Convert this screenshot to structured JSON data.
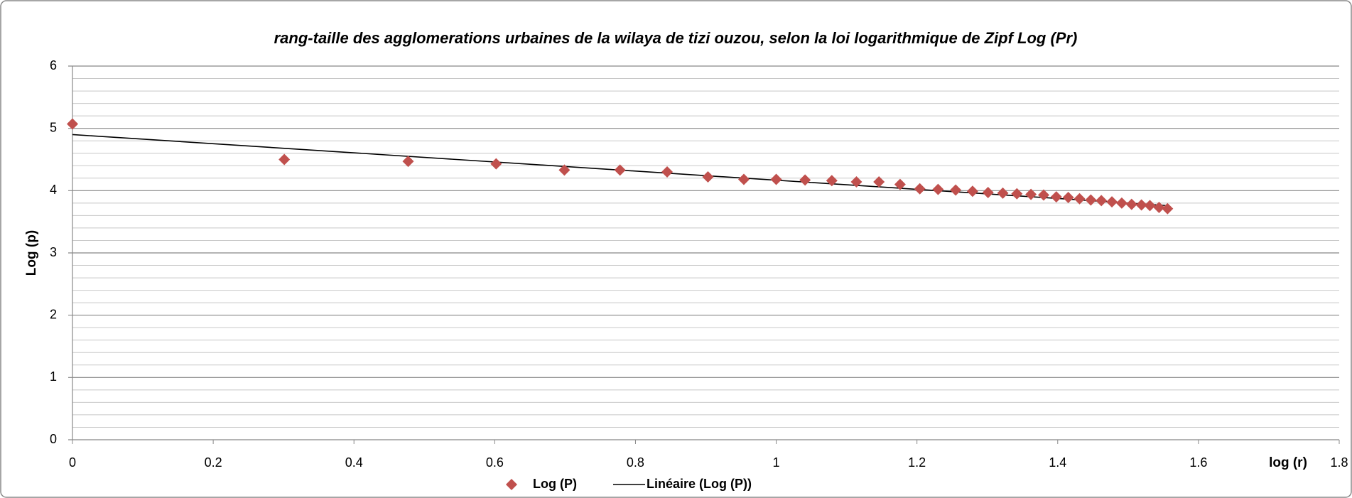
{
  "chart_data": {
    "type": "scatter",
    "title": "rang-taille des agglomerations urbaines de la wilaya de tizi ouzou, selon la loi logarithmique  de Zipf Log (Pr)",
    "x_label": "log (r)",
    "y_label": "Log (p)",
    "xlim": [
      0,
      1.8
    ],
    "xticks": [
      0,
      0.2,
      0.4,
      0.6,
      0.8,
      1,
      1.2,
      1.4,
      1.6,
      1.8
    ],
    "ylim": [
      0,
      6
    ],
    "yticks": [
      0,
      1,
      2,
      3,
      4,
      5,
      6
    ],
    "grid": true,
    "legend": "bottom",
    "series": [
      {
        "name": "Log (P)",
        "color": "#c0504d",
        "x": [
          0,
          0.301,
          0.477,
          0.602,
          0.699,
          0.778,
          0.845,
          0.903,
          0.954,
          1,
          1.041,
          1.079,
          1.114,
          1.146,
          1.176,
          1.204,
          1.23,
          1.255,
          1.279,
          1.301,
          1.322,
          1.342,
          1.362,
          1.38,
          1.398,
          1.415,
          1.431,
          1.447,
          1.462,
          1.477,
          1.491,
          1.505,
          1.519,
          1.531,
          1.544,
          1.556
        ],
        "values": [
          5.07,
          4.5,
          4.47,
          4.43,
          4.33,
          4.33,
          4.3,
          4.22,
          4.18,
          4.18,
          4.17,
          4.16,
          4.14,
          4.14,
          4.1,
          4.03,
          4.02,
          4.01,
          3.99,
          3.97,
          3.96,
          3.95,
          3.94,
          3.93,
          3.9,
          3.89,
          3.87,
          3.85,
          3.84,
          3.82,
          3.8,
          3.78,
          3.77,
          3.76,
          3.73,
          3.71
        ]
      }
    ],
    "trendline": {
      "name": "Linéaire (Log (P))",
      "color": "#000000",
      "x": [
        0,
        1.556
      ],
      "values": [
        4.9,
        3.76
      ]
    }
  }
}
